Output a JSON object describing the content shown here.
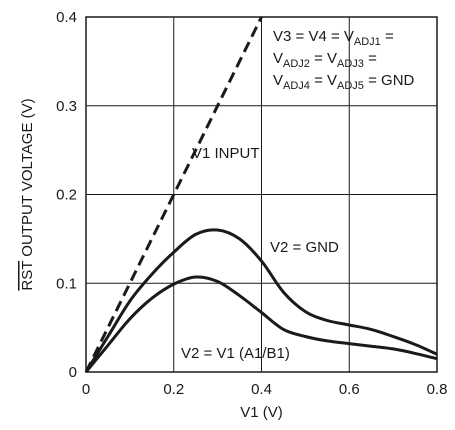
{
  "chart_data": {
    "type": "line",
    "xlabel": "V1 (V)",
    "ylabel_overline": "RST",
    "ylabel_rest": " OUTPUT VOLTAGE (V)",
    "xlim": [
      0,
      0.8
    ],
    "ylim": [
      0,
      0.4
    ],
    "xticks": [
      "0",
      "0.2",
      "0.4",
      "0.6",
      "0.8"
    ],
    "yticks": [
      "0",
      "0.1",
      "0.2",
      "0.3",
      "0.4"
    ],
    "grid": true,
    "series": [
      {
        "name": "V1 INPUT",
        "style": "dashed",
        "x": [
          0,
          0.4
        ],
        "y": [
          0,
          0.4
        ]
      },
      {
        "name": "V2 = GND",
        "style": "solid",
        "x": [
          0,
          0.05,
          0.1,
          0.15,
          0.2,
          0.25,
          0.3,
          0.35,
          0.4,
          0.45,
          0.5,
          0.55,
          0.6,
          0.65,
          0.7,
          0.75,
          0.8
        ],
        "y": [
          0,
          0.04,
          0.08,
          0.11,
          0.135,
          0.155,
          0.16,
          0.15,
          0.125,
          0.09,
          0.068,
          0.058,
          0.053,
          0.048,
          0.04,
          0.031,
          0.02
        ]
      },
      {
        "name": "V2 = V1 (A1/B1)",
        "style": "solid",
        "x": [
          0,
          0.05,
          0.1,
          0.15,
          0.2,
          0.25,
          0.3,
          0.35,
          0.4,
          0.45,
          0.5,
          0.55,
          0.6,
          0.65,
          0.7,
          0.75,
          0.8
        ],
        "y": [
          0,
          0.03,
          0.06,
          0.083,
          0.099,
          0.107,
          0.102,
          0.086,
          0.067,
          0.048,
          0.04,
          0.035,
          0.032,
          0.029,
          0.026,
          0.021,
          0.015
        ]
      }
    ],
    "annotation": {
      "line1": [
        "V3 = V4 = V",
        "ADJ1",
        " ="
      ],
      "line2": [
        "V",
        "ADJ2",
        " = V",
        "ADJ3",
        " ="
      ],
      "line3": [
        "V",
        "ADJ4",
        " = V",
        "ADJ5",
        " = GND"
      ]
    }
  }
}
